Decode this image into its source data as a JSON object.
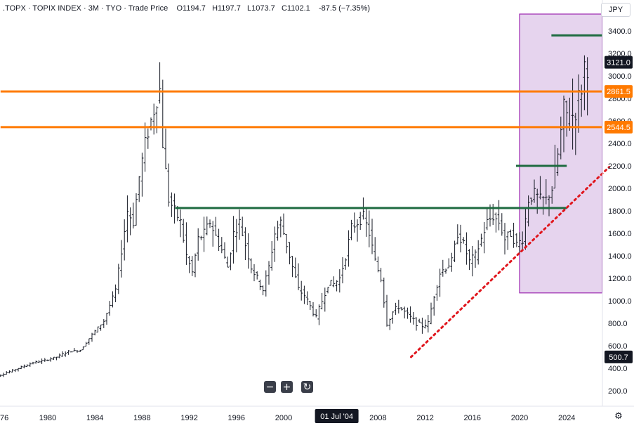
{
  "legend": {
    "symbol": ".TOPX",
    "name": "TOPIX INDEX",
    "interval": "3M",
    "exchange": "TYO",
    "price_type": "Trade Price",
    "open": "O1194.7",
    "high": "H1197.7",
    "low": "L1073.7",
    "close": "C1102.1",
    "change": "-87.5 (−7.35%)"
  },
  "currency": "JPY",
  "controls": {
    "zoom_out": "−",
    "zoom_in": "+",
    "reset": "↻",
    "settings": "⚙"
  },
  "colors": {
    "up_down_bars": "#131722",
    "orange": "#ff7a00",
    "green": "#1e6b40",
    "red_dotted": "#e0161d",
    "box_fill": "#e2cdeb",
    "box_border": "#9c27b0",
    "change_negative": "#f23645"
  },
  "chart_data": {
    "type": "ohlc-bar",
    "ylim": [
      0,
      3550
    ],
    "xlim": [
      1976,
      2027.8
    ],
    "yticks": [
      200,
      400,
      600,
      800,
      1000,
      1200,
      1400,
      1600,
      1800,
      2000,
      2200,
      2400,
      2600,
      2800,
      3000,
      3200,
      3400
    ],
    "ytick_labels": [
      "200.0",
      "400.0",
      "600.0",
      "800.0",
      "1000.0",
      "1200.0",
      "1400.0",
      "1600.0",
      "1800.0",
      "2000.0",
      "2200.0",
      "2400.0",
      "2600.0",
      "2800.0",
      "3000.0",
      "3200.0",
      "3400.0"
    ],
    "xticks": [
      {
        "year": 1976,
        "label": "76"
      },
      {
        "year": 1980,
        "label": "1980"
      },
      {
        "year": 1984,
        "label": "1984"
      },
      {
        "year": 1988,
        "label": "1988"
      },
      {
        "year": 1992,
        "label": "1992"
      },
      {
        "year": 1996,
        "label": "1996"
      },
      {
        "year": 2000,
        "label": "2000"
      },
      {
        "year": 2008,
        "label": "2008"
      },
      {
        "year": 2012,
        "label": "2012"
      },
      {
        "year": 2016,
        "label": "2016"
      },
      {
        "year": 2020,
        "label": "2020"
      },
      {
        "year": 2024,
        "label": "2024"
      }
    ],
    "crosshair_x": {
      "year": 2004.5,
      "label": "01 Jul '04"
    },
    "price_labels": [
      {
        "value": 3121.0,
        "label": "3121.0",
        "style": "dark"
      },
      {
        "value": 2861.5,
        "label": "2861.5",
        "style": "orange"
      },
      {
        "value": 2544.5,
        "label": "2544.5",
        "style": "orange"
      },
      {
        "value": 500.7,
        "label": "500.7",
        "style": "dark"
      }
    ],
    "horizontal_lines": [
      {
        "value": 2861.5,
        "x_start": 1976,
        "x_end": 2027.8,
        "color": "orange",
        "width": 3
      },
      {
        "value": 2544.5,
        "x_start": 1976,
        "x_end": 2027.8,
        "color": "orange",
        "width": 3
      },
      {
        "value": 1825,
        "x_start": 1990.8,
        "x_end": 2024.0,
        "color": "green",
        "width": 3
      },
      {
        "value": 2200,
        "x_start": 2019.7,
        "x_end": 2024.0,
        "color": "green",
        "width": 3
      },
      {
        "value": 3360,
        "x_start": 2022.7,
        "x_end": 2027.3,
        "color": "green",
        "width": 3
      }
    ],
    "trendline": {
      "start": {
        "year": 2010.8,
        "value": 500
      },
      "end": {
        "year": 2027.6,
        "value": 2190
      },
      "color": "red_dotted"
    },
    "box": {
      "x_start": 2020.0,
      "x_end": 2027.0,
      "y_low": 1070,
      "y_high": 3550
    },
    "anchors": [
      [
        1976.0,
        330
      ],
      [
        1977.0,
        370
      ],
      [
        1978.0,
        410
      ],
      [
        1979.0,
        450
      ],
      [
        1980.0,
        470
      ],
      [
        1981.0,
        500
      ],
      [
        1982.0,
        550
      ],
      [
        1983.0,
        560
      ],
      [
        1984.0,
        700
      ],
      [
        1985.0,
        820
      ],
      [
        1986.0,
        1100
      ],
      [
        1987.0,
        1800
      ],
      [
        1987.5,
        1700
      ],
      [
        1988.0,
        2100
      ],
      [
        1988.5,
        2400
      ],
      [
        1989.0,
        2600
      ],
      [
        1989.75,
        2880
      ],
      [
        1990.0,
        2400
      ],
      [
        1990.5,
        1900
      ],
      [
        1991.0,
        1800
      ],
      [
        1991.5,
        1700
      ],
      [
        1992.0,
        1400
      ],
      [
        1992.5,
        1250
      ],
      [
        1993.0,
        1550
      ],
      [
        1993.5,
        1600
      ],
      [
        1994.0,
        1700
      ],
      [
        1995.0,
        1450
      ],
      [
        1995.5,
        1300
      ],
      [
        1996.0,
        1600
      ],
      [
        1996.5,
        1700
      ],
      [
        1997.0,
        1500
      ],
      [
        1997.5,
        1300
      ],
      [
        1998.0,
        1200
      ],
      [
        1998.5,
        1100
      ],
      [
        1999.0,
        1300
      ],
      [
        1999.5,
        1600
      ],
      [
        2000.0,
        1700
      ],
      [
        2000.5,
        1500
      ],
      [
        2001.0,
        1300
      ],
      [
        2001.5,
        1100
      ],
      [
        2002.0,
        1050
      ],
      [
        2002.5,
        950
      ],
      [
        2003.0,
        850
      ],
      [
        2003.5,
        1000
      ],
      [
        2004.0,
        1150
      ],
      [
        2004.5,
        1150
      ],
      [
        2005.0,
        1200
      ],
      [
        2005.5,
        1400
      ],
      [
        2006.0,
        1650
      ],
      [
        2006.5,
        1700
      ],
      [
        2007.0,
        1750
      ],
      [
        2007.5,
        1600
      ],
      [
        2008.0,
        1350
      ],
      [
        2008.5,
        1200
      ],
      [
        2009.0,
        800
      ],
      [
        2009.5,
        900
      ],
      [
        2010.0,
        950
      ],
      [
        2010.5,
        900
      ],
      [
        2011.0,
        850
      ],
      [
        2011.5,
        800
      ],
      [
        2012.0,
        780
      ],
      [
        2012.5,
        800
      ],
      [
        2013.0,
        1050
      ],
      [
        2013.5,
        1250
      ],
      [
        2014.0,
        1300
      ],
      [
        2014.5,
        1350
      ],
      [
        2015.0,
        1600
      ],
      [
        2015.5,
        1500
      ],
      [
        2016.0,
        1350
      ],
      [
        2016.5,
        1400
      ],
      [
        2017.0,
        1550
      ],
      [
        2017.5,
        1700
      ],
      [
        2018.0,
        1750
      ],
      [
        2018.5,
        1700
      ],
      [
        2019.0,
        1550
      ],
      [
        2019.5,
        1600
      ],
      [
        2020.0,
        1500
      ],
      [
        2020.5,
        1550
      ],
      [
        2021.0,
        1900
      ],
      [
        2021.5,
        1950
      ],
      [
        2022.0,
        1900
      ],
      [
        2022.5,
        1900
      ],
      [
        2023.0,
        2000
      ],
      [
        2023.5,
        2300
      ],
      [
        2024.0,
        2700
      ],
      [
        2024.5,
        2600
      ],
      [
        2025.0,
        2700
      ],
      [
        2025.5,
        2900
      ],
      [
        2025.75,
        3100
      ]
    ]
  }
}
